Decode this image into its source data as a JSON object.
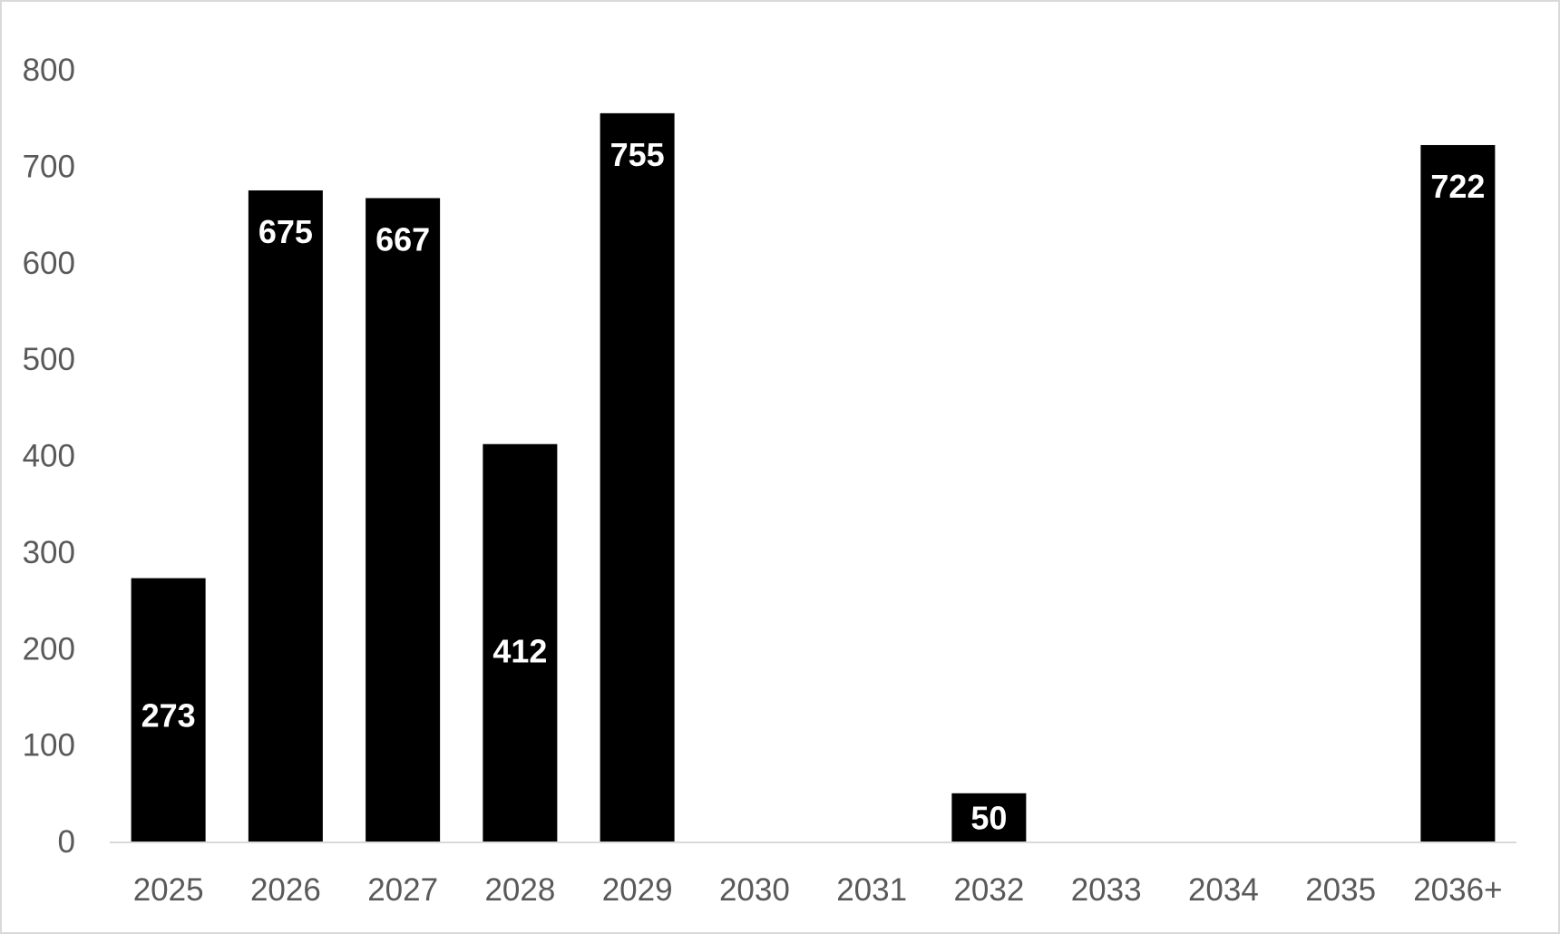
{
  "chart_data": {
    "type": "bar",
    "categories": [
      "2025",
      "2026",
      "2027",
      "2028",
      "2029",
      "2030",
      "2031",
      "2032",
      "2033",
      "2034",
      "2035",
      "2036+"
    ],
    "values": [
      273,
      675,
      667,
      412,
      755,
      0,
      0,
      50,
      0,
      0,
      0,
      722
    ],
    "data_labels": [
      "273",
      "675",
      "667",
      "412",
      "755",
      "",
      "",
      "50",
      "",
      "",
      "",
      "722"
    ],
    "title": "",
    "xlabel": "",
    "ylabel": "",
    "ylim": [
      0,
      800
    ],
    "yticks": [
      0,
      100,
      200,
      300,
      400,
      500,
      600,
      700,
      800
    ],
    "grid": false,
    "legend": "none",
    "bar_color": "#000000",
    "axis_color": "#d9d9d9",
    "label_color": "#ffffff",
    "tick_color": "#595959"
  }
}
